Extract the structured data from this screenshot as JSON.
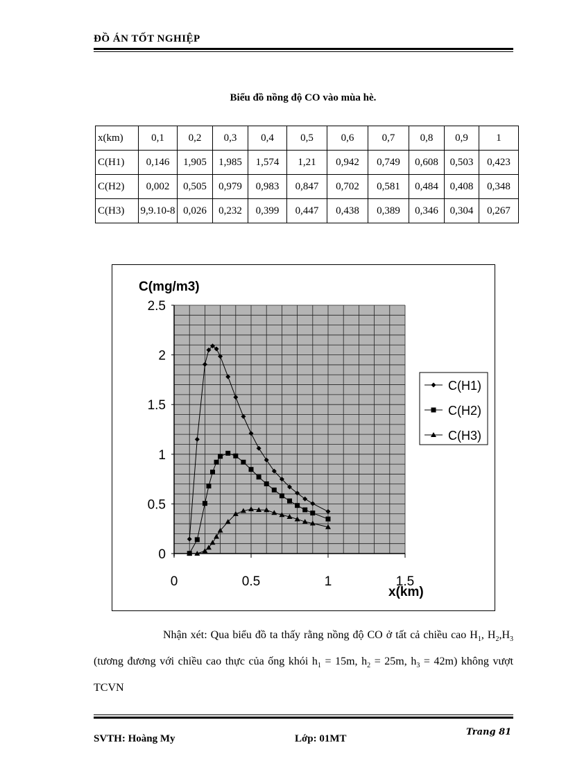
{
  "header": {
    "title": "ĐỒ ÁN TỐT NGHIỆP"
  },
  "caption": "Biểu đồ nồng độ CO vào mùa hè.",
  "table": {
    "header": [
      "x(km)",
      "0,1",
      "0,2",
      "0,3",
      "0,4",
      "0,5",
      "0,6",
      "0,7",
      "0,8",
      "0,9",
      "1"
    ],
    "rows": [
      [
        "C(H1)",
        "0,146",
        "1,905",
        "1,985",
        "1,574",
        "1,21",
        "0,942",
        "0,749",
        "0,608",
        "0,503",
        "0,423"
      ],
      [
        "C(H2)",
        "0,002",
        "0,505",
        "0,979",
        "0,983",
        "0,847",
        "0,702",
        "0,581",
        "0,484",
        "0,408",
        "0,348"
      ],
      [
        "C(H3)",
        "9,9.10-8",
        "0,026",
        "0,232",
        "0,399",
        "0,447",
        "0,438",
        "0,389",
        "0,346",
        "0,304",
        "0,267"
      ]
    ]
  },
  "chart_data": {
    "type": "line",
    "ylabel": "C(mg/m3)",
    "xlabel": "x(km)",
    "xlim": [
      0,
      1.5
    ],
    "ylim": [
      0,
      2.5
    ],
    "xticks": [
      "0",
      "0.5",
      "1",
      "1.5"
    ],
    "yticks": [
      "0",
      "0.5",
      "1",
      "1.5",
      "2",
      "2.5"
    ],
    "grid": true,
    "plot_background": "#b4b4b4",
    "legend": "right",
    "x": [
      0.1,
      0.15,
      0.2,
      0.225,
      0.25,
      0.275,
      0.3,
      0.35,
      0.4,
      0.45,
      0.5,
      0.55,
      0.6,
      0.65,
      0.7,
      0.75,
      0.8,
      0.85,
      0.9,
      1.0
    ],
    "series": [
      {
        "name": "C(H1)",
        "marker": "diamond",
        "values": [
          0.146,
          1.15,
          1.905,
          2.05,
          2.09,
          2.06,
          1.985,
          1.78,
          1.574,
          1.38,
          1.21,
          1.06,
          0.942,
          0.83,
          0.749,
          0.67,
          0.608,
          0.55,
          0.503,
          0.423
        ]
      },
      {
        "name": "C(H2)",
        "marker": "square",
        "values": [
          0.002,
          0.14,
          0.505,
          0.68,
          0.82,
          0.92,
          0.979,
          1.01,
          0.983,
          0.92,
          0.847,
          0.77,
          0.702,
          0.64,
          0.581,
          0.53,
          0.484,
          0.44,
          0.408,
          0.348
        ]
      },
      {
        "name": "C(H3)",
        "marker": "triangle",
        "values": [
          0,
          0,
          0.026,
          0.06,
          0.11,
          0.17,
          0.232,
          0.32,
          0.399,
          0.43,
          0.447,
          0.44,
          0.438,
          0.41,
          0.389,
          0.37,
          0.346,
          0.32,
          0.304,
          0.267
        ]
      }
    ]
  },
  "paragraph": [
    {
      "t": "Nhận xét: Qua biểu đồ ta thấy rằng nồng độ CO ở tất cả chiều cao H"
    },
    {
      "t": "1",
      "sub": true
    },
    {
      "t": ", H"
    },
    {
      "t": "2",
      "sub": true
    },
    {
      "t": ",H"
    },
    {
      "t": "3",
      "sub": true
    },
    {
      "t": " (tương đương với chiều cao thực của ống khói h"
    },
    {
      "t": "1",
      "sub": true
    },
    {
      "t": " = 15m, h"
    },
    {
      "t": "2",
      "sub": true
    },
    {
      "t": " = 25m, h"
    },
    {
      "t": "3",
      "sub": true
    },
    {
      "t": " = 42m) không vượt TCVN"
    }
  ],
  "footer": {
    "student": "SVTH:  Hoàng My",
    "class": "Lớp: 01MT",
    "page": "Trang 81"
  }
}
